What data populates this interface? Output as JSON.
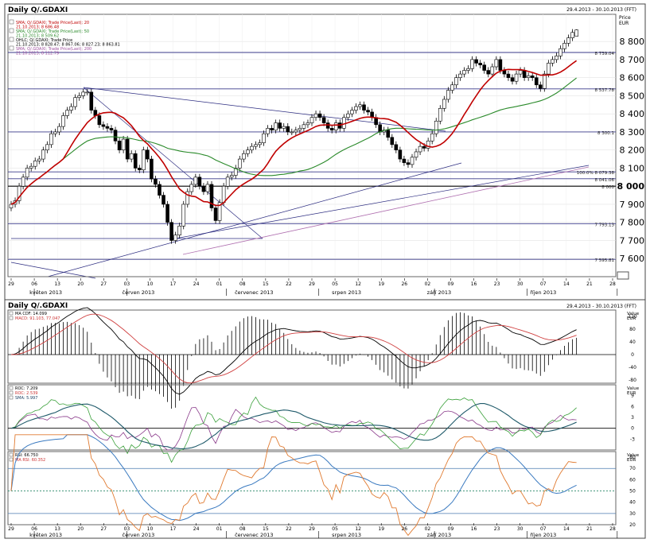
{
  "main": {
    "title": "Daily Q/.GDAXI",
    "range": "29.4.2013 - 30.10.2013 (FFT)",
    "unit_label": "Price",
    "currency": "EUR",
    "legend": [
      {
        "name": "SMA; Q/.GDAXI; Trade Price(Last); 20",
        "value": "21.10.2013; 8 686.48",
        "color": "#c00000"
      },
      {
        "name": "SMA; Q/.GDAXI; Trade Price(Last); 50",
        "value": "21.10.2013; 8 509.62",
        "color": "#2a8a2a"
      },
      {
        "name": "OHLC; Q/.GDAXI; Trade Price",
        "value": "21.10.2013; 8 828.47; 8 867.06; 8 827.23; 8 863.81",
        "color": "#000000"
      },
      {
        "name": "SMA; Q/.GDAXI; Trade Price(Last); 200",
        "value": "21.10.2013; 8 112.79",
        "color": "#a050a0"
      }
    ],
    "level_labels": [
      "8 739.04",
      "8 537.78",
      "8 300.1",
      "100.0% 8 079.38",
      "8 041.06",
      "8 000",
      "7 793.13",
      "7 595.81"
    ],
    "months": [
      "květen 2013",
      "červen 2013",
      "červenec 2013",
      "srpen 2013",
      "září 2013",
      "říjen 2013"
    ]
  },
  "chart_data": [
    {
      "type": "candlestick",
      "title": "Daily Q/.GDAXI",
      "subtitle": "29.4.2013 - 30.10.2013 (FFT)",
      "ylabel": "Price EUR",
      "ylim": [
        7500,
        8950
      ],
      "yticks": [
        7600,
        7700,
        7800,
        7900,
        8000,
        8100,
        8200,
        8300,
        8400,
        8500,
        8600,
        8700,
        8800
      ],
      "xticks": [
        "29",
        "06",
        "13",
        "20",
        "27",
        "03",
        "10",
        "17",
        "24",
        "01",
        "08",
        "15",
        "22",
        "29",
        "05",
        "12",
        "19",
        "26",
        "02",
        "09",
        "16",
        "23",
        "30",
        "07",
        "14",
        "21",
        "28"
      ],
      "horizontal_levels": [
        8739.04,
        8537.78,
        8300.1,
        8079.38,
        8041.06,
        8000,
        7793.13,
        7595.81
      ],
      "close": [
        7900,
        7920,
        8000,
        8050,
        8100,
        8110,
        8140,
        8150,
        8200,
        8230,
        8290,
        8300,
        8330,
        8390,
        8420,
        8440,
        8490,
        8500,
        8520,
        8520,
        8420,
        8390,
        8340,
        8330,
        8320,
        8310,
        8250,
        8200,
        8260,
        8150,
        8180,
        8100,
        8090,
        8200,
        8150,
        8040,
        8010,
        7950,
        7900,
        7800,
        7700,
        7730,
        7780,
        7900,
        7970,
        8010,
        8050,
        8000,
        7970,
        8010,
        7880,
        7810,
        7910,
        8000,
        8050,
        8060,
        8100,
        8150,
        8180,
        8200,
        8220,
        8230,
        8240,
        8290,
        8320,
        8310,
        8350,
        8320,
        8330,
        8300,
        8300,
        8310,
        8320,
        8340,
        8350,
        8380,
        8400,
        8380,
        8350,
        8320,
        8310,
        8350,
        8320,
        8380,
        8400,
        8420,
        8440,
        8450,
        8420,
        8410,
        8380,
        8340,
        8300,
        8310,
        8270,
        8230,
        8200,
        8150,
        8130,
        8120,
        8160,
        8190,
        8220,
        8210,
        8250,
        8290,
        8360,
        8430,
        8480,
        8530,
        8560,
        8600,
        8620,
        8640,
        8650,
        8700,
        8680,
        8670,
        8640,
        8620,
        8660,
        8700,
        8640,
        8620,
        8600,
        8580,
        8620,
        8640,
        8600,
        8610,
        8600,
        8560,
        8540,
        8620,
        8680,
        8700,
        8720,
        8760,
        8790,
        8820,
        8850,
        8864
      ],
      "series": [
        {
          "name": "SMA 20",
          "last": 8686.48
        },
        {
          "name": "SMA 50",
          "last": 8509.62
        },
        {
          "name": "SMA 200",
          "last": 8112.79
        }
      ],
      "last_ohlc": {
        "date": "21.10.2013",
        "open": 8828.47,
        "high": 8867.06,
        "low": 8827.23,
        "close": 8863.81
      }
    },
    {
      "type": "line",
      "title": "MACD",
      "legend": [
        "MA CDF: 14.099",
        "MACD: 91.103, 77.047"
      ],
      "yticks": [
        -80,
        -40,
        0,
        40,
        80,
        120
      ],
      "ylim": [
        -90,
        140
      ],
      "last": {
        "macd": 91.103,
        "signal": 77.047,
        "hist": 14.099
      }
    },
    {
      "type": "line",
      "title": "ROC",
      "legend": [
        "ROC: 7.209",
        "ROC: 2.539",
        "SMA: 5.997"
      ],
      "yticks": [
        -3,
        0,
        3,
        6,
        9
      ],
      "ylim": [
        -6,
        12
      ]
    },
    {
      "type": "line",
      "title": "RSI",
      "legend": [
        "RSI: 66.750",
        "MA RSI: 60.352"
      ],
      "yticks": [
        20,
        30,
        40,
        50,
        60,
        70,
        80
      ],
      "ylim": [
        20,
        85
      ],
      "levels": [
        30,
        50,
        70
      ]
    }
  ],
  "lower": {
    "title": "Daily Q/.GDAXI",
    "range": "29.4.2013 - 30.10.2013 (FFT)",
    "value_label": "Value",
    "currency": "EUR"
  }
}
